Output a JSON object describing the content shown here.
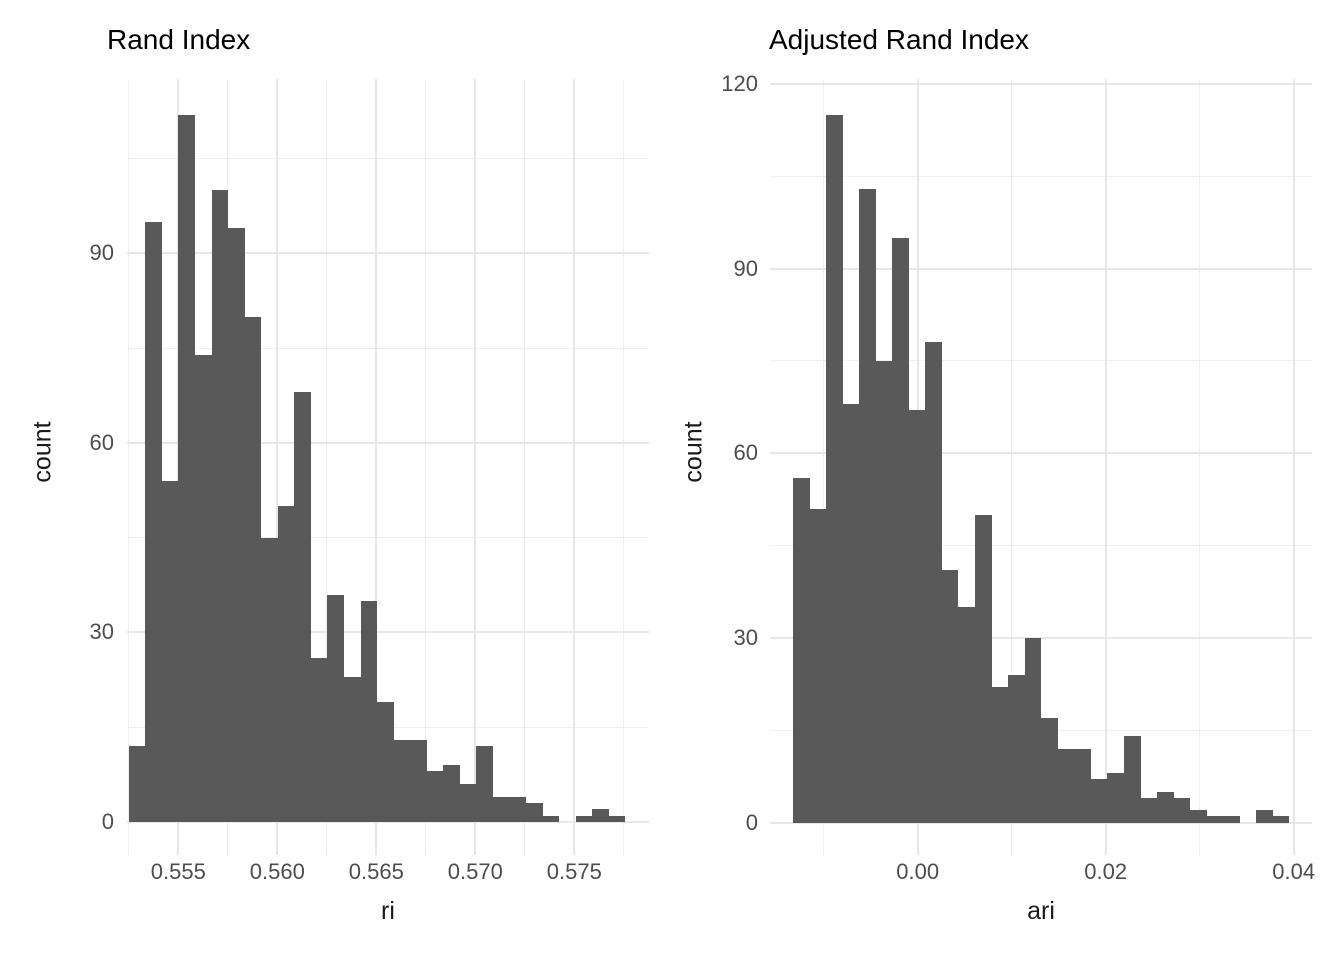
{
  "figure": {
    "background": "#ffffff",
    "bar_color": "#595959",
    "grid_major_color": "#e7e7e7",
    "grid_minor_color": "#efefef",
    "axis_text_color": "#4d4d4d",
    "title_color": "#000000"
  },
  "chart_data": [
    {
      "type": "bar",
      "subtype": "histogram",
      "title": "Rand Index",
      "xlabel": "ri",
      "ylabel": "count",
      "grid": true,
      "legend": "none",
      "bins": {
        "start": 0.5525,
        "width": 0.000836
      },
      "counts": [
        12,
        95,
        54,
        112,
        74,
        100,
        94,
        80,
        45,
        50,
        68,
        26,
        36,
        23,
        35,
        19,
        13,
        13,
        8,
        9,
        6,
        12,
        4,
        4,
        3,
        1,
        0,
        1,
        2,
        1
      ],
      "total_n": 1000,
      "x_tick_labels": [
        "0.555",
        "0.560",
        "0.565",
        "0.570",
        "0.575"
      ],
      "x_tick_values": [
        0.555,
        0.56,
        0.565,
        0.57,
        0.575
      ],
      "x_minor_values": [
        0.5525,
        0.5575,
        0.5625,
        0.5675,
        0.5725,
        0.5775
      ],
      "y_tick_labels": [
        "0",
        "30",
        "60",
        "90"
      ],
      "y_tick_values": [
        0,
        30,
        60,
        90
      ],
      "y_minor_values": [
        15,
        45,
        75,
        105
      ],
      "xlim": [
        0.5513,
        0.5789
      ],
      "ylim": [
        -5.6,
        117.6
      ]
    },
    {
      "type": "bar",
      "subtype": "histogram",
      "title": "Adjusted Rand Index",
      "xlabel": "ari",
      "ylabel": "count",
      "grid": true,
      "legend": "none",
      "bins": {
        "start": -0.01327,
        "width": 0.0017606
      },
      "counts": [
        56,
        51,
        115,
        68,
        103,
        75,
        95,
        67,
        78,
        41,
        35,
        50,
        22,
        24,
        30,
        17,
        12,
        12,
        7,
        8,
        14,
        4,
        5,
        4,
        2,
        1,
        1,
        0,
        2,
        1
      ],
      "total_n": 1000,
      "x_tick_labels": [
        "0.00",
        "0.02",
        "0.04"
      ],
      "x_tick_values": [
        0.0,
        0.02,
        0.04
      ],
      "x_minor_values": [
        -0.01,
        0.01,
        0.03
      ],
      "y_tick_labels": [
        "0",
        "30",
        "60",
        "90",
        "120"
      ],
      "y_tick_values": [
        0,
        30,
        60,
        90,
        120
      ],
      "y_minor_values": [
        15,
        45,
        75,
        105
      ],
      "xlim": [
        -0.0157,
        0.042
      ],
      "ylim": [
        -5.75,
        120.75
      ]
    }
  ]
}
